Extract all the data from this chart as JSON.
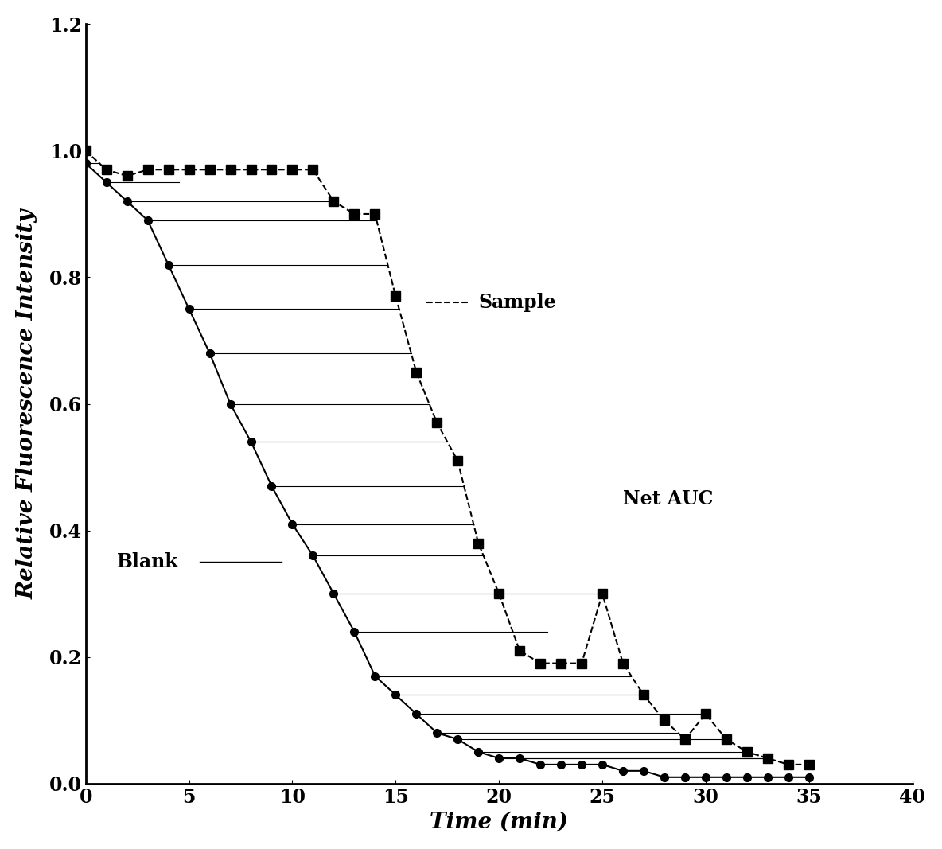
{
  "title": "",
  "xlabel": "Time (min)",
  "ylabel": "Relative Fluorescence Intensity",
  "xlim": [
    0,
    40
  ],
  "ylim": [
    0,
    1.2
  ],
  "xticks": [
    0,
    5,
    10,
    15,
    20,
    25,
    30,
    35,
    40
  ],
  "yticks": [
    0.0,
    0.2,
    0.4,
    0.6,
    0.8,
    1.0,
    1.2
  ],
  "sample_x": [
    0,
    1,
    2,
    3,
    4,
    5,
    6,
    7,
    8,
    9,
    10,
    11,
    12,
    13,
    14,
    15,
    16,
    17,
    18,
    19,
    20,
    21,
    22,
    23,
    24,
    25,
    26,
    27,
    28,
    29,
    30,
    31,
    32,
    33,
    34,
    35
  ],
  "sample_y": [
    1.0,
    0.97,
    0.96,
    0.97,
    0.97,
    0.97,
    0.97,
    0.97,
    0.97,
    0.97,
    0.97,
    0.97,
    0.92,
    0.9,
    0.9,
    0.77,
    0.65,
    0.57,
    0.51,
    0.38,
    0.3,
    0.21,
    0.19,
    0.19,
    0.19,
    0.3,
    0.19,
    0.14,
    0.1,
    0.07,
    0.11,
    0.07,
    0.05,
    0.04,
    0.03,
    0.03
  ],
  "blank_x": [
    0,
    1,
    2,
    3,
    4,
    5,
    6,
    7,
    8,
    9,
    10,
    11,
    12,
    13,
    14,
    15,
    16,
    17,
    18,
    19,
    20,
    21,
    22,
    23,
    24,
    25,
    26,
    27,
    28,
    29,
    30,
    31,
    32,
    33,
    34,
    35
  ],
  "blank_y": [
    0.98,
    0.95,
    0.92,
    0.89,
    0.82,
    0.75,
    0.68,
    0.6,
    0.54,
    0.47,
    0.41,
    0.36,
    0.3,
    0.24,
    0.17,
    0.14,
    0.11,
    0.08,
    0.07,
    0.05,
    0.04,
    0.04,
    0.03,
    0.03,
    0.03,
    0.03,
    0.02,
    0.02,
    0.01,
    0.01,
    0.01,
    0.01,
    0.01,
    0.01,
    0.01,
    0.01
  ],
  "sample_color": "#000000",
  "blank_color": "#000000",
  "background_color": "#ffffff",
  "label_sample": "Sample",
  "label_blank": "Blank",
  "label_net_auc": "Net AUC",
  "font_size_label": 20,
  "font_size_tick": 17,
  "font_size_annotation": 17
}
